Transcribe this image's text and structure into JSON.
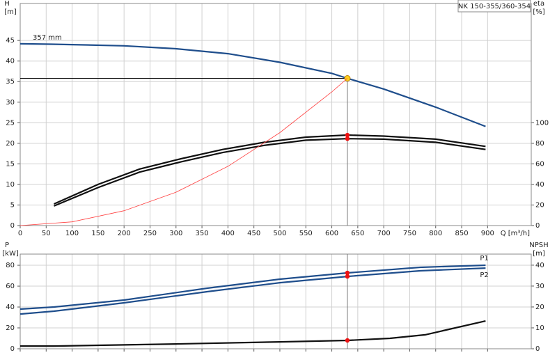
{
  "chart_data": [
    {
      "type": "line",
      "tag": "NK 150-355/360-354",
      "x_label": "Q [m³/h]",
      "y_label": [
        "H",
        "[m]"
      ],
      "y2_label": [
        "eta",
        "[%]"
      ],
      "xlim": [
        0,
        984
      ],
      "xticks": [
        0,
        50,
        100,
        150,
        200,
        250,
        300,
        350,
        400,
        450,
        500,
        550,
        600,
        650,
        700,
        750,
        800,
        850,
        900
      ],
      "ylim": [
        0,
        54
      ],
      "yticks": [
        0,
        5,
        10,
        15,
        20,
        25,
        30,
        35,
        40,
        45
      ],
      "y2lim": [
        0,
        216
      ],
      "y2ticks": [
        0,
        20,
        40,
        60,
        80,
        100
      ],
      "grid": true,
      "operating_point": {
        "x": 630,
        "y": 35.8
      },
      "series": [
        {
          "name": "357 mm",
          "color": "#1f4e8c",
          "x": [
            0,
            60,
            100,
            200,
            300,
            400,
            500,
            600,
            630,
            700,
            800,
            896
          ],
          "values": [
            44.2,
            44.1,
            44.0,
            43.7,
            43.0,
            41.8,
            39.7,
            37.0,
            35.8,
            33.2,
            28.8,
            24.1
          ]
        },
        {
          "color": "#111111",
          "axis": "y2",
          "x": [
            65,
            150,
            230,
            310,
            390,
            470,
            550,
            630,
            700,
            800,
            896
          ],
          "values": [
            21,
            40,
            55,
            65,
            74,
            81,
            86,
            88,
            87,
            84,
            77
          ]
        },
        {
          "color": "#111111",
          "axis": "y2",
          "x": [
            65,
            150,
            230,
            310,
            390,
            470,
            550,
            630,
            700,
            800,
            896
          ],
          "values": [
            19,
            37,
            52,
            62,
            71,
            78,
            83,
            84.5,
            84,
            81,
            74
          ]
        },
        {
          "color": "#ff4040",
          "x": [
            0,
            100,
            200,
            300,
            400,
            500,
            600,
            630
          ],
          "values": [
            0,
            0.9,
            3.6,
            8.1,
            14.4,
            22.6,
            32.5,
            35.8
          ]
        }
      ]
    },
    {
      "type": "line",
      "y_label": [
        "P",
        "[kW]"
      ],
      "y2_label": [
        "NPSH",
        "[m]"
      ],
      "xlim": [
        0,
        984
      ],
      "ylim": [
        0,
        90.7
      ],
      "yticks": [
        0,
        20,
        40,
        60,
        80
      ],
      "y2lim": [
        0,
        45.3
      ],
      "y2ticks": [
        0,
        10,
        20,
        30,
        40
      ],
      "grid": true,
      "series": [
        {
          "name": "P1",
          "color": "#1f4e8c",
          "x": [
            0,
            65,
            200,
            360,
            500,
            630,
            770,
            896
          ],
          "values": [
            38,
            40,
            46.7,
            58,
            66.7,
            72.7,
            78,
            80
          ]
        },
        {
          "name": "P2",
          "color": "#1f4e8c",
          "x": [
            0,
            65,
            200,
            360,
            500,
            630,
            770,
            896
          ],
          "values": [
            33.3,
            36,
            44,
            54.7,
            63.3,
            69.3,
            74.7,
            77.3
          ]
        },
        {
          "color": "#111111",
          "axis": "y2",
          "x": [
            0,
            65,
            300,
            500,
            630,
            712,
            780,
            820,
            896
          ],
          "values": [
            1.3,
            1.3,
            2.3,
            3.3,
            4,
            5,
            6.7,
            9,
            13.3
          ]
        }
      ]
    }
  ]
}
